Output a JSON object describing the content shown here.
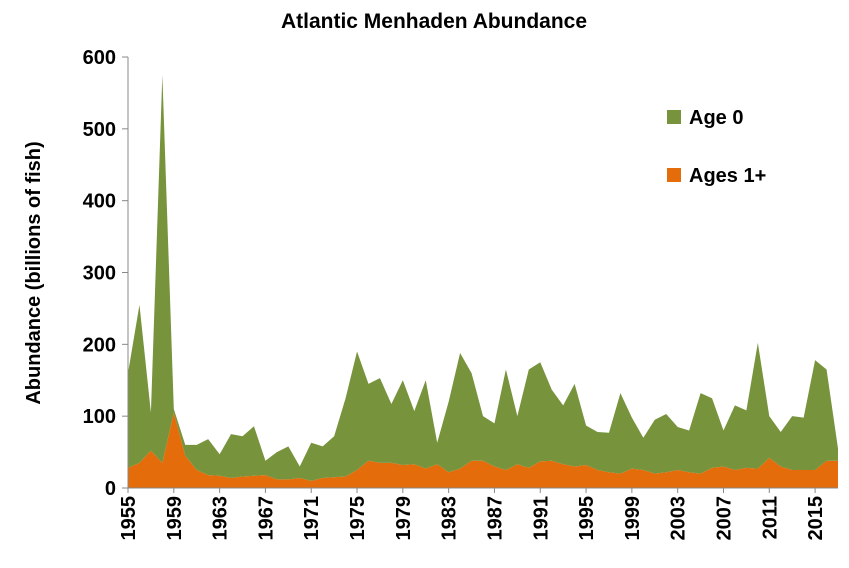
{
  "chart_data": {
    "type": "stacked_area",
    "title": "Atlantic Menhaden Abundance",
    "y_label": "Abundance (billions of fish)",
    "x": [
      1955,
      1956,
      1957,
      1958,
      1959,
      1960,
      1961,
      1962,
      1963,
      1964,
      1965,
      1966,
      1967,
      1968,
      1969,
      1970,
      1971,
      1972,
      1973,
      1974,
      1975,
      1976,
      1977,
      1978,
      1979,
      1980,
      1981,
      1982,
      1983,
      1984,
      1985,
      1986,
      1987,
      1988,
      1989,
      1990,
      1991,
      1992,
      1993,
      1994,
      1995,
      1996,
      1997,
      1998,
      1999,
      2000,
      2001,
      2002,
      2003,
      2004,
      2005,
      2006,
      2007,
      2008,
      2009,
      2010,
      2011,
      2012,
      2013,
      2014,
      2015,
      2016,
      2017
    ],
    "xlim": [
      1955,
      2017
    ],
    "xticks": [
      1955,
      1959,
      1963,
      1967,
      1971,
      1975,
      1979,
      1983,
      1987,
      1991,
      1995,
      1999,
      2003,
      2007,
      2011,
      2015
    ],
    "ylim": [
      0,
      600
    ],
    "yticks": [
      0,
      100,
      200,
      300,
      400,
      500,
      600
    ],
    "legend": "upper right",
    "series": [
      {
        "name": "Ages 1+",
        "color": "#e46c0a",
        "values": [
          28,
          35,
          52,
          35,
          105,
          45,
          25,
          18,
          17,
          14,
          16,
          17,
          18,
          12,
          12,
          14,
          10,
          14,
          15,
          16,
          25,
          38,
          35,
          35,
          32,
          33,
          27,
          33,
          22,
          27,
          38,
          38,
          30,
          25,
          33,
          28,
          37,
          38,
          33,
          30,
          32,
          25,
          22,
          20,
          27,
          25,
          20,
          22,
          25,
          22,
          20,
          28,
          30,
          25,
          28,
          27,
          42,
          30,
          25,
          25,
          25,
          38,
          38
        ]
      },
      {
        "name": "Age 0",
        "color": "#77933c",
        "values": [
          132,
          220,
          53,
          540,
          5,
          15,
          35,
          50,
          30,
          61,
          56,
          69,
          20,
          38,
          46,
          16,
          53,
          44,
          57,
          109,
          165,
          107,
          118,
          82,
          118,
          74,
          123,
          30,
          98,
          161,
          122,
          62,
          60,
          140,
          67,
          137,
          138,
          99,
          82,
          115,
          55,
          53,
          55,
          112,
          71,
          45,
          75,
          81,
          60,
          58,
          112,
          97,
          50,
          90,
          80,
          175,
          58,
          48,
          75,
          73,
          153,
          127,
          17
        ]
      }
    ]
  }
}
